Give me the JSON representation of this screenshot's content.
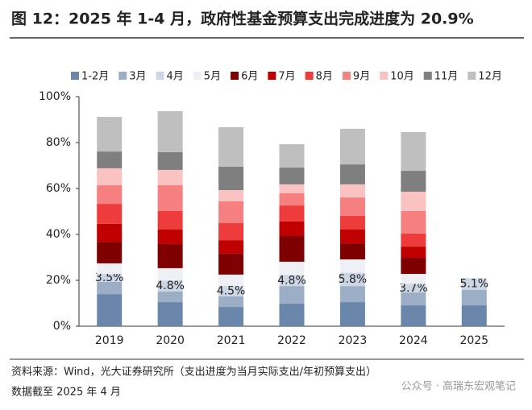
{
  "chart_data": {
    "type": "stacked_bar",
    "title": "图 12：2025 年 1-4 月，政府性基金预算支出完成进度为 20.9%",
    "categories": [
      "2019",
      "2020",
      "2021",
      "2022",
      "2023",
      "2024",
      "2025"
    ],
    "series": [
      {
        "name": "1-2月",
        "color": "#6a86ab",
        "values": [
          14.0,
          10.5,
          8.4,
          9.8,
          10.5,
          9.1,
          9.1
        ]
      },
      {
        "name": "3月",
        "color": "#9cadc6",
        "values": [
          5.3,
          4.6,
          4.6,
          7.7,
          7.0,
          5.6,
          6.7
        ]
      },
      {
        "name": "4月",
        "color": "#cdd6e4",
        "values": [
          3.5,
          4.8,
          4.5,
          4.8,
          5.8,
          3.7,
          5.1
        ],
        "value_labels": [
          "3.5%",
          "4.8%",
          "4.5%",
          "4.8%",
          "5.8%",
          "3.7%",
          "5.1%"
        ]
      },
      {
        "name": "5月",
        "color": "#eef0f5",
        "values": [
          4.6,
          5.4,
          5.0,
          5.8,
          5.8,
          4.4,
          null
        ]
      },
      {
        "name": "6月",
        "color": "#7f0000",
        "values": [
          9.4,
          10.5,
          9.1,
          11.2,
          7.0,
          7.0,
          null
        ]
      },
      {
        "name": "7月",
        "color": "#c00000",
        "values": [
          7.8,
          6.3,
          5.9,
          6.3,
          6.0,
          4.9,
          null
        ]
      },
      {
        "name": "8月",
        "color": "#ee3b3b",
        "values": [
          8.7,
          8.1,
          7.4,
          7.0,
          6.0,
          5.7,
          null
        ]
      },
      {
        "name": "9月",
        "color": "#f68080",
        "values": [
          8.1,
          11.2,
          9.5,
          5.3,
          8.0,
          9.8,
          null
        ]
      },
      {
        "name": "10月",
        "color": "#fbc2c2",
        "values": [
          7.4,
          6.7,
          4.9,
          3.9,
          5.7,
          8.4,
          null
        ]
      },
      {
        "name": "11月",
        "color": "#7f7f7f",
        "values": [
          7.3,
          7.7,
          10.2,
          7.3,
          8.7,
          9.1,
          null
        ]
      },
      {
        "name": "12月",
        "color": "#bfbfbf",
        "values": [
          15.1,
          17.9,
          17.2,
          10.2,
          15.5,
          16.9,
          null
        ]
      }
    ],
    "ylim": [
      0,
      100
    ],
    "yticks": [
      {
        "value": 0,
        "label": "0%"
      },
      {
        "value": 20,
        "label": "20%"
      },
      {
        "value": 40,
        "label": "40%"
      },
      {
        "value": 60,
        "label": "60%"
      },
      {
        "value": 80,
        "label": "80%"
      },
      {
        "value": 100,
        "label": "100%"
      }
    ],
    "source": "资料来源：Wind，光大证券研究所（支出进度为当月实际支出/年初预算支出）",
    "note": "数据截至 2025 年 4 月",
    "watermark": "公众号 · 高瑞东宏观笔记"
  }
}
